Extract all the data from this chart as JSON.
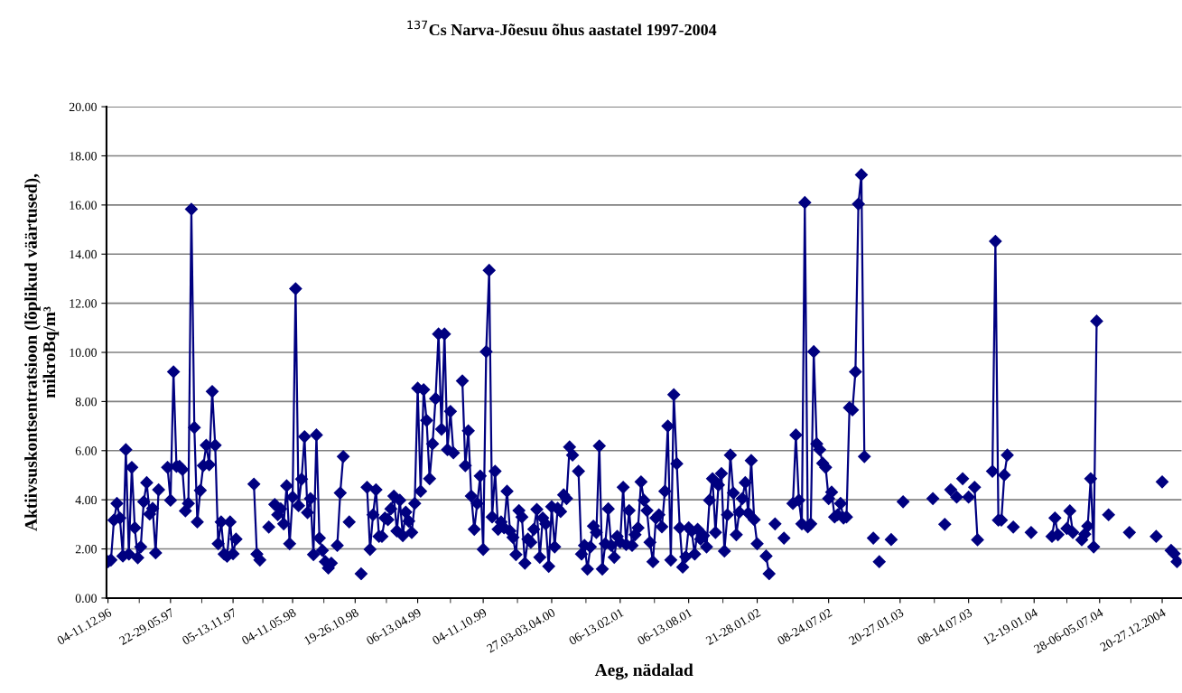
{
  "chart_data": {
    "type": "line",
    "title": "$^{137}$Cs Narva-Jõesuu õhus aastatel 1997-2004",
    "xlabel": "Aeg, nädalad",
    "ylabel": "Aktiivsuskontsentratsioon (lõplikud väärtused),\nmikroBq/m³",
    "categories": [
      "04-11.12.96",
      null,
      null,
      null,
      null,
      null,
      null,
      null,
      null,
      null,
      null,
      null,
      null,
      null,
      null,
      null,
      null,
      null,
      null,
      null,
      null,
      "22-29.05.97",
      null,
      null,
      null,
      null,
      null,
      null,
      null,
      null,
      null,
      null,
      null,
      null,
      null,
      null,
      null,
      null,
      null,
      null,
      null,
      null,
      "05-13.11.97",
      null,
      null,
      null,
      null,
      null,
      null,
      null,
      null,
      null,
      null,
      null,
      null,
      null,
      null,
      null,
      null,
      null,
      null,
      null,
      "04-11.05.98",
      null,
      null,
      null,
      null,
      null,
      null,
      null,
      null,
      null,
      null,
      null,
      null,
      null,
      null,
      null,
      null,
      null,
      null,
      null,
      null,
      "19-26.10.98",
      null,
      null,
      null,
      null,
      null,
      null,
      null,
      null,
      null,
      null,
      null,
      null,
      null,
      null,
      null,
      null,
      null,
      null,
      null,
      null,
      "06-13.04.99",
      null,
      null,
      null,
      null,
      null,
      null,
      null,
      null,
      null,
      null,
      null,
      null,
      null,
      null,
      null,
      null,
      null,
      null,
      null,
      null,
      null,
      "04-11.10.99",
      null,
      null,
      null,
      null,
      null,
      null,
      null,
      null,
      null,
      null,
      null,
      null,
      null,
      null,
      null,
      null,
      null,
      null,
      null,
      null,
      null,
      null,
      "27.03-03.04.00",
      null,
      null,
      null,
      null,
      null,
      null,
      null,
      null,
      null,
      null,
      null,
      null,
      null,
      null,
      null,
      null,
      null,
      null,
      null,
      null,
      null,
      null,
      "06-13.02.01",
      null,
      null,
      null,
      null,
      null,
      null,
      null,
      null,
      null,
      null,
      null,
      null,
      null,
      null,
      null,
      null,
      null,
      null,
      null,
      null,
      null,
      null,
      "06-13.08.01",
      null,
      null,
      null,
      null,
      null,
      null,
      null,
      null,
      null,
      null,
      null,
      null,
      null,
      null,
      null,
      null,
      null,
      null,
      null,
      null,
      null,
      null,
      "21-28.01.02",
      null,
      null,
      null,
      null,
      null,
      null,
      null,
      null,
      null,
      null,
      null,
      null,
      null,
      null,
      null,
      null,
      null,
      null,
      null,
      null,
      null,
      null,
      null,
      "08-24.07.02",
      null,
      null,
      null,
      null,
      null,
      null,
      null,
      null,
      null,
      null,
      null,
      null,
      null,
      null,
      null,
      null,
      null,
      null,
      null,
      null,
      null,
      null,
      null,
      "20-27.01.03",
      null,
      null,
      null,
      null,
      null,
      null,
      null,
      null,
      null,
      null,
      null,
      null,
      null,
      null,
      null,
      null,
      null,
      null,
      null,
      null,
      null,
      null,
      "08-14.07.03",
      null,
      null,
      null,
      null,
      null,
      null,
      null,
      null,
      null,
      null,
      null,
      null,
      null,
      null,
      null,
      null,
      null,
      null,
      null,
      null,
      null,
      "12-19.01.04",
      null,
      null,
      null,
      null,
      null,
      null,
      null,
      null,
      null,
      null,
      null,
      null,
      null,
      null,
      null,
      null,
      null,
      null,
      null,
      null,
      null,
      "28-06-05.07.04",
      null,
      null,
      null,
      null,
      null,
      null,
      null,
      null,
      null,
      null,
      null,
      null,
      null,
      null,
      null,
      null,
      null,
      null,
      null,
      null,
      "20-27.12.2004",
      null,
      null,
      null,
      null,
      null,
      null
    ],
    "series": [
      {
        "color": "#000080",
        "values": [
          1.48,
          1.55,
          3.17,
          3.85,
          3.26,
          1.71,
          6.04,
          1.79,
          5.32,
          2.86,
          1.64,
          2.08,
          3.92,
          4.7,
          3.42,
          3.65,
          1.84,
          4.41,
          null,
          null,
          5.32,
          3.98,
          9.21,
          5.36,
          5.36,
          5.23,
          3.55,
          3.85,
          15.83,
          6.94,
          3.1,
          4.38,
          5.39,
          6.22,
          5.43,
          8.41,
          6.22,
          2.21,
          3.1,
          1.79,
          1.7,
          3.1,
          1.8,
          2.4,
          null,
          null,
          null,
          null,
          null,
          4.64,
          1.79,
          1.55,
          null,
          null,
          2.89,
          null,
          3.81,
          3.39,
          3.63,
          3.02,
          4.57,
          2.21,
          4.11,
          12.59,
          3.76,
          4.84,
          6.57,
          3.48,
          4.05,
          1.77,
          6.64,
          2.44,
          1.94,
          1.48,
          1.22,
          1.42,
          null,
          2.14,
          4.28,
          5.76,
          null,
          3.1,
          null,
          null,
          null,
          0.99,
          null,
          4.51,
          1.98,
          3.39,
          4.41,
          2.51,
          2.51,
          3.26,
          3.19,
          3.63,
          4.15,
          2.73,
          3.98,
          2.54,
          3.5,
          3.13,
          2.67,
          3.85,
          8.54,
          4.35,
          8.48,
          7.23,
          4.86,
          6.28,
          8.12,
          10.75,
          6.87,
          10.75,
          6.04,
          7.6,
          5.91,
          null,
          null,
          8.84,
          5.39,
          6.81,
          4.15,
          2.8,
          3.85,
          4.97,
          1.98,
          10.03,
          13.34,
          3.3,
          5.16,
          2.8,
          3.1,
          2.86,
          4.35,
          2.73,
          2.47,
          1.77,
          3.56,
          3.3,
          1.42,
          2.4,
          2.27,
          2.8,
          3.61,
          1.66,
          3.26,
          3.02,
          1.29,
          3.72,
          2.08,
          3.65,
          3.52,
          4.2,
          4.05,
          6.15,
          5.82,
          null,
          5.16,
          1.79,
          2.14,
          1.18,
          2.08,
          2.93,
          2.67,
          6.19,
          1.18,
          2.21,
          3.63,
          2.14,
          1.66,
          2.51,
          2.27,
          4.51,
          2.18,
          3.56,
          2.14,
          2.58,
          2.86,
          4.73,
          3.98,
          3.56,
          2.27,
          1.48,
          3.26,
          3.39,
          2.9,
          4.35,
          7.0,
          1.55,
          8.28,
          5.47,
          2.86,
          1.26,
          1.68,
          2.86,
          2.73,
          1.79,
          2.8,
          2.4,
          2.54,
          2.08,
          3.98,
          4.86,
          2.67,
          4.6,
          5.07,
          1.91,
          3.39,
          5.82,
          4.28,
          2.58,
          3.5,
          4.05,
          4.7,
          3.46,
          5.6,
          3.19,
          2.21,
          null,
          null,
          1.71,
          0.99,
          null,
          3.02,
          null,
          null,
          2.44,
          null,
          null,
          3.85,
          6.64,
          3.98,
          3.02,
          16.1,
          2.9,
          3.02,
          10.03,
          6.28,
          6.04,
          5.49,
          5.32,
          4.05,
          4.31,
          3.3,
          3.39,
          3.85,
          3.26,
          3.3,
          7.75,
          7.66,
          9.21,
          16.04,
          17.23,
          5.76,
          null,
          null,
          2.44,
          null,
          1.48,
          null,
          null,
          null,
          2.38,
          null,
          null,
          null,
          3.92,
          null,
          null,
          null,
          null,
          null,
          null,
          null,
          null,
          null,
          4.05,
          null,
          null,
          null,
          3.0,
          null,
          4.41,
          null,
          4.11,
          null,
          4.86,
          null,
          4.11,
          null,
          4.51,
          2.37,
          null,
          null,
          null,
          null,
          5.16,
          14.52,
          3.17,
          3.17,
          5.01,
          5.82,
          null,
          2.89,
          null,
          null,
          null,
          null,
          null,
          2.67,
          null,
          null,
          null,
          null,
          null,
          null,
          2.51,
          3.26,
          2.58,
          null,
          null,
          2.83,
          3.55,
          2.67,
          null,
          null,
          2.37,
          2.6,
          2.93,
          4.86,
          2.08,
          11.27,
          null,
          null,
          null,
          3.39,
          null,
          null,
          null,
          null,
          null,
          null,
          2.67,
          null,
          null,
          null,
          null,
          null,
          null,
          null,
          null,
          2.51,
          null,
          4.73,
          null,
          null,
          1.94,
          1.81,
          1.48,
          null
        ]
      }
    ],
    "ylim": [
      0,
      20
    ],
    "yticks": [
      {
        "value": 0,
        "label": "0.00"
      },
      {
        "value": 2,
        "label": "2.00"
      },
      {
        "value": 4,
        "label": "4.00"
      },
      {
        "value": 6,
        "label": "6.00"
      },
      {
        "value": 8,
        "label": "8.00"
      },
      {
        "value": 10,
        "label": "10.00"
      },
      {
        "value": 12,
        "label": "12.00"
      },
      {
        "value": 14,
        "label": "14.00"
      },
      {
        "value": 16,
        "label": "16.00"
      },
      {
        "value": 18,
        "label": "18.00"
      },
      {
        "value": 20,
        "label": "20.00"
      }
    ],
    "grid": "y",
    "legend": false,
    "marker": "diamond",
    "line_style": "solid"
  }
}
